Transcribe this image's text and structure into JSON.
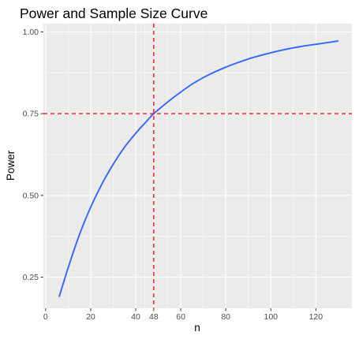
{
  "chart_data": {
    "type": "line",
    "title": "Power and Sample Size Curve",
    "xlabel": "n",
    "ylabel": "Power",
    "xlim": [
      -1,
      136
    ],
    "ylim": [
      0.155,
      1.025
    ],
    "x_ticks": [
      0,
      20,
      40,
      48,
      60,
      80,
      100,
      120
    ],
    "y_ticks": [
      0.25,
      0.5,
      0.75,
      1.0
    ],
    "y_tick_labels": [
      "0.25",
      "0.50",
      "0.75",
      "1.00"
    ],
    "grid": true,
    "panel_background": "#ebebeb",
    "series": [
      {
        "color": "#3366ff",
        "x": [
          6,
          10,
          15,
          20,
          25,
          30,
          35,
          40,
          45,
          48,
          55,
          60,
          65,
          70,
          75,
          80,
          85,
          90,
          95,
          100,
          105,
          110,
          115,
          120,
          125,
          130
        ],
        "y": [
          0.19,
          0.279,
          0.38,
          0.464,
          0.535,
          0.595,
          0.647,
          0.69,
          0.728,
          0.75,
          0.79,
          0.816,
          0.84,
          0.86,
          0.877,
          0.892,
          0.905,
          0.917,
          0.927,
          0.936,
          0.944,
          0.951,
          0.957,
          0.962,
          0.967,
          0.972
        ]
      }
    ],
    "reference_lines": [
      {
        "orientation": "vertical",
        "value": 48,
        "color": "#ff0000",
        "style": "dashed"
      },
      {
        "orientation": "horizontal",
        "value": 0.75,
        "color": "#ff0000",
        "style": "dashed"
      }
    ]
  }
}
